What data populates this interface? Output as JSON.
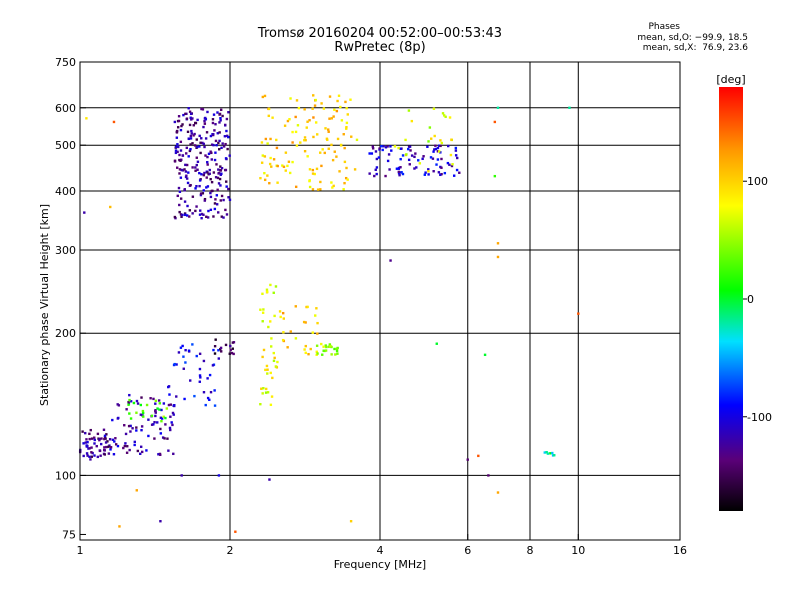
{
  "header": {
    "title": "Tromsø 20160204 00:52:00–00:53:43",
    "subtitle": "RwPretec (8p)",
    "phases_label": "Phases",
    "stats_o": "mean, sd,O: −99.9, 18.5",
    "stats_x": "mean, sd,X:  76.9, 23.6"
  },
  "chart_data": {
    "type": "scatter",
    "xlabel": "Frequency [MHz]",
    "ylabel": "Stationary phase Virtual Height [km]",
    "xscale": "log",
    "yscale": "log",
    "xlim": [
      1,
      16
    ],
    "ylim": [
      73,
      750
    ],
    "x_ticks": [
      1,
      2,
      4,
      6,
      8,
      10,
      16
    ],
    "y_ticks": [
      75,
      100,
      200,
      300,
      400,
      500,
      600,
      750
    ],
    "grid_x": [
      2,
      4,
      6,
      8,
      10
    ],
    "grid_y": [
      100,
      200,
      300,
      400,
      500,
      600
    ],
    "colorbar": {
      "label": "[deg]",
      "ticks": [
        100,
        0,
        -100
      ],
      "range": [
        -180,
        180
      ]
    },
    "clusters": [
      {
        "x": [
          1.0,
          1.15
        ],
        "y": [
          108,
          125
        ],
        "phase": -130,
        "n": 60
      },
      {
        "x": [
          1.15,
          1.55
        ],
        "y": [
          110,
          150
        ],
        "phase": -120,
        "n": 90
      },
      {
        "x": [
          1.25,
          1.5
        ],
        "y": [
          130,
          145
        ],
        "phase": 30,
        "n": 20
      },
      {
        "x": [
          1.5,
          1.9
        ],
        "y": [
          140,
          190
        ],
        "phase": -100,
        "n": 40
      },
      {
        "x": [
          1.85,
          2.05
        ],
        "y": [
          180,
          195
        ],
        "phase": -150,
        "n": 15
      },
      {
        "x": [
          1.55,
          2.0
        ],
        "y": [
          350,
          600
        ],
        "phase": -125,
        "n": 260
      },
      {
        "x": [
          2.3,
          2.5
        ],
        "y": [
          140,
          260
        ],
        "phase": 80,
        "n": 40
      },
      {
        "x": [
          2.5,
          3.0
        ],
        "y": [
          180,
          230
        ],
        "phase": 100,
        "n": 25
      },
      {
        "x": [
          2.95,
          3.3
        ],
        "y": [
          180,
          190
        ],
        "phase": 55,
        "n": 25
      },
      {
        "x": [
          2.3,
          3.6
        ],
        "y": [
          400,
          640
        ],
        "phase": 100,
        "n": 130
      },
      {
        "x": [
          3.8,
          5.8
        ],
        "y": [
          430,
          500
        ],
        "phase": -110,
        "n": 90
      },
      {
        "x": [
          4.2,
          5.6
        ],
        "y": [
          440,
          600
        ],
        "phase": 70,
        "n": 25
      },
      {
        "x": [
          8.5,
          9.0
        ],
        "y": [
          110,
          112
        ],
        "phase": -20,
        "n": 8
      }
    ],
    "scatter_points": [
      {
        "x": 1.9,
        "y": 100,
        "phase": -100
      },
      {
        "x": 1.55,
        "y": 560,
        "phase": -110
      },
      {
        "x": 1.17,
        "y": 560,
        "phase": 150
      },
      {
        "x": 1.15,
        "y": 370,
        "phase": 110
      },
      {
        "x": 6.9,
        "y": 310,
        "phase": 120
      },
      {
        "x": 6.9,
        "y": 290,
        "phase": 120
      },
      {
        "x": 6.8,
        "y": 430,
        "phase": 20
      },
      {
        "x": 10.0,
        "y": 220,
        "phase": 150
      },
      {
        "x": 9.6,
        "y": 600,
        "phase": -20
      },
      {
        "x": 6.9,
        "y": 600,
        "phase": -20
      },
      {
        "x": 6.8,
        "y": 560,
        "phase": 150
      },
      {
        "x": 4.2,
        "y": 285,
        "phase": -130
      },
      {
        "x": 5.2,
        "y": 190,
        "phase": 0
      },
      {
        "x": 6.5,
        "y": 180,
        "phase": 0
      },
      {
        "x": 6.3,
        "y": 110,
        "phase": 150
      },
      {
        "x": 6.0,
        "y": 108,
        "phase": -140
      },
      {
        "x": 2.4,
        "y": 98,
        "phase": -120
      },
      {
        "x": 1.6,
        "y": 100,
        "phase": -120
      },
      {
        "x": 1.3,
        "y": 93,
        "phase": 120
      },
      {
        "x": 1.45,
        "y": 80,
        "phase": -120
      },
      {
        "x": 1.2,
        "y": 78,
        "phase": 120
      },
      {
        "x": 3.5,
        "y": 80,
        "phase": 100
      },
      {
        "x": 2.05,
        "y": 76,
        "phase": 150
      },
      {
        "x": 6.6,
        "y": 100,
        "phase": -140
      },
      {
        "x": 6.9,
        "y": 92,
        "phase": 120
      },
      {
        "x": 1.03,
        "y": 570,
        "phase": 90
      },
      {
        "x": 1.02,
        "y": 360,
        "phase": -120
      }
    ]
  }
}
